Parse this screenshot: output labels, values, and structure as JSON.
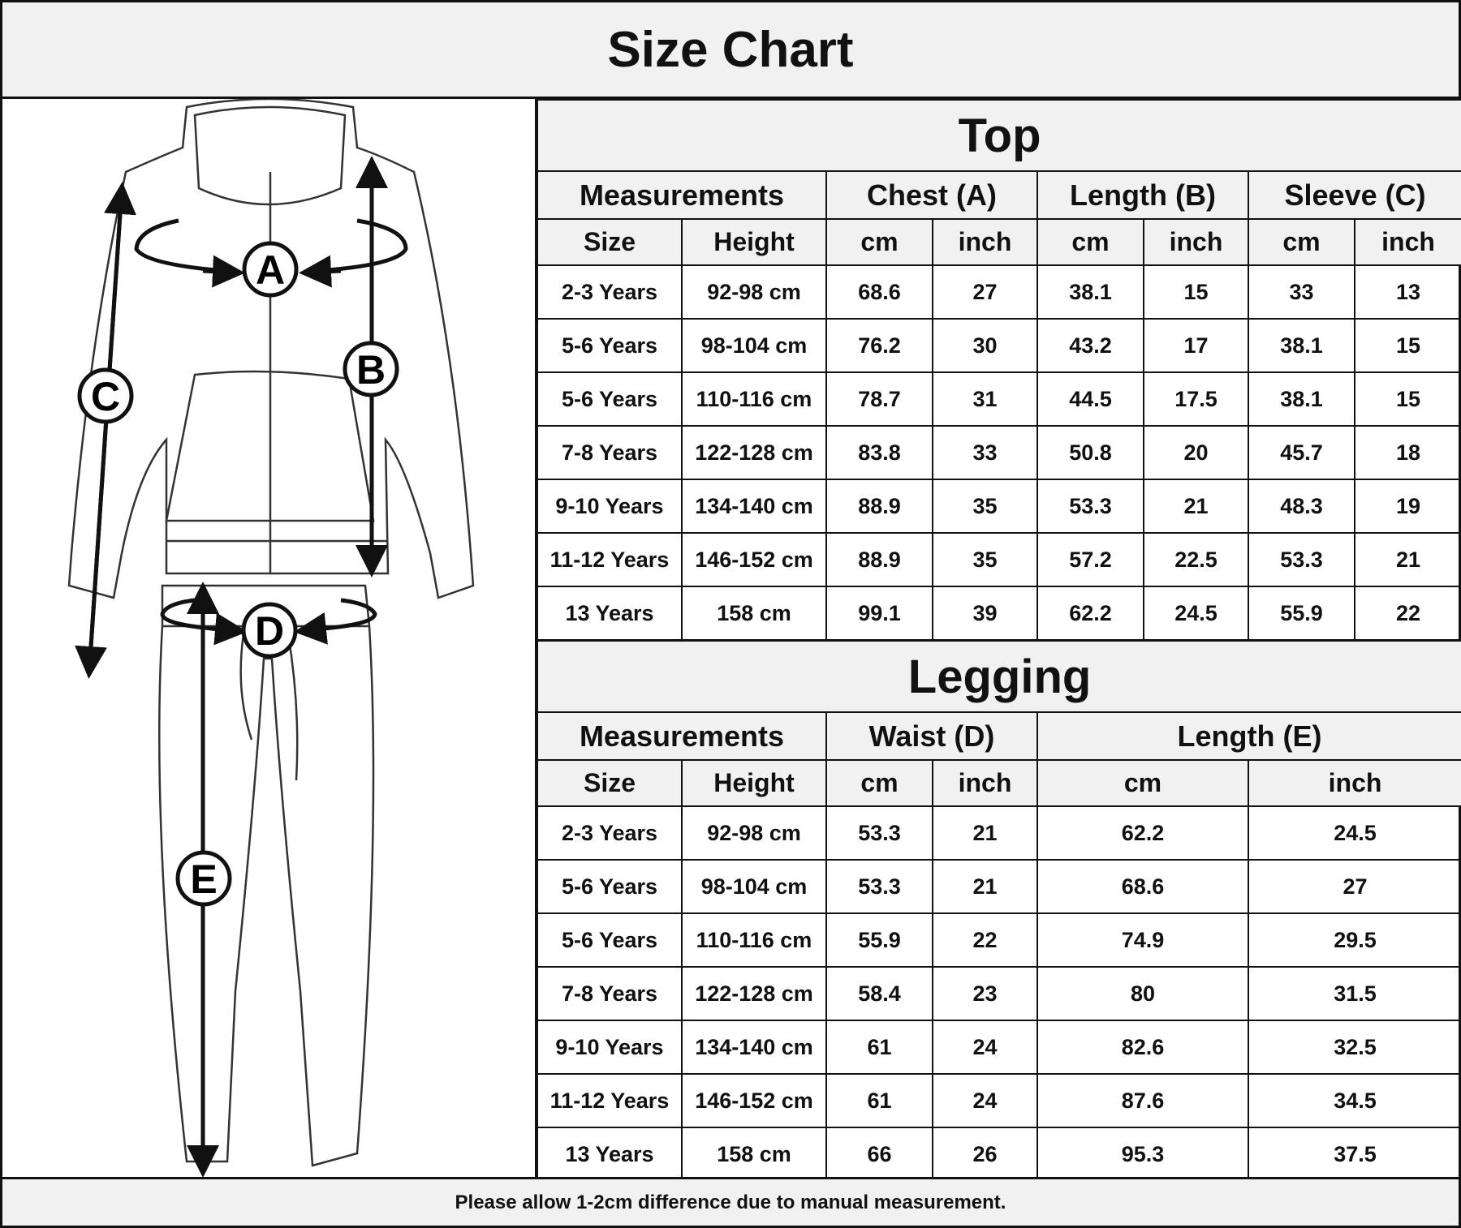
{
  "title": "Size Chart",
  "footer": "Please allow 1-2cm difference due to manual measurement.",
  "illustration": {
    "markers": [
      "A",
      "B",
      "C",
      "D",
      "E"
    ]
  },
  "top": {
    "title": "Top",
    "groups": [
      "Measurements",
      "Chest (A)",
      "Length (B)",
      "Sleeve (C)"
    ],
    "columns": [
      "Size",
      "Height",
      "cm",
      "inch",
      "cm",
      "inch",
      "cm",
      "inch"
    ],
    "rows": [
      [
        "2-3 Years",
        "92-98 cm",
        "68.6",
        "27",
        "38.1",
        "15",
        "33",
        "13"
      ],
      [
        "5-6 Years",
        "98-104 cm",
        "76.2",
        "30",
        "43.2",
        "17",
        "38.1",
        "15"
      ],
      [
        "5-6 Years",
        "110-116 cm",
        "78.7",
        "31",
        "44.5",
        "17.5",
        "38.1",
        "15"
      ],
      [
        "7-8 Years",
        "122-128 cm",
        "83.8",
        "33",
        "50.8",
        "20",
        "45.7",
        "18"
      ],
      [
        "9-10 Years",
        "134-140 cm",
        "88.9",
        "35",
        "53.3",
        "21",
        "48.3",
        "19"
      ],
      [
        "11-12 Years",
        "146-152 cm",
        "88.9",
        "35",
        "57.2",
        "22.5",
        "53.3",
        "21"
      ],
      [
        "13 Years",
        "158 cm",
        "99.1",
        "39",
        "62.2",
        "24.5",
        "55.9",
        "22"
      ]
    ]
  },
  "legging": {
    "title": "Legging",
    "groups": [
      "Measurements",
      "Waist (D)",
      "Length (E)"
    ],
    "columns": [
      "Size",
      "Height",
      "cm",
      "inch",
      "cm",
      "inch"
    ],
    "rows": [
      [
        "2-3 Years",
        "92-98 cm",
        "53.3",
        "21",
        "62.2",
        "24.5"
      ],
      [
        "5-6 Years",
        "98-104 cm",
        "53.3",
        "21",
        "68.6",
        "27"
      ],
      [
        "5-6 Years",
        "110-116 cm",
        "55.9",
        "22",
        "74.9",
        "29.5"
      ],
      [
        "7-8 Years",
        "122-128 cm",
        "58.4",
        "23",
        "80",
        "31.5"
      ],
      [
        "9-10 Years",
        "134-140 cm",
        "61",
        "24",
        "82.6",
        "32.5"
      ],
      [
        "11-12 Years",
        "146-152 cm",
        "61",
        "24",
        "87.6",
        "34.5"
      ],
      [
        "13 Years",
        "158 cm",
        "66",
        "26",
        "95.3",
        "37.5"
      ]
    ]
  }
}
